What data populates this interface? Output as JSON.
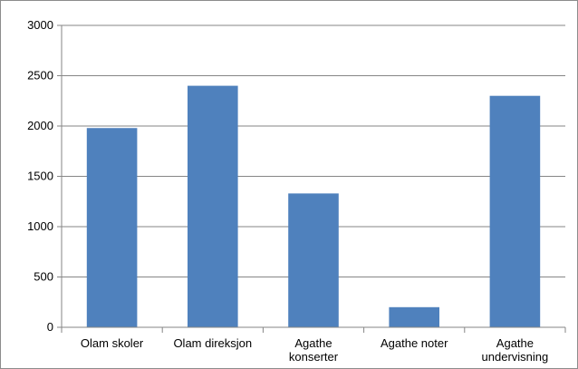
{
  "chart_data": {
    "type": "bar",
    "title": "",
    "xlabel": "",
    "ylabel": "",
    "ylim": [
      0,
      3000
    ],
    "yticks": [
      0,
      500,
      1000,
      1500,
      2000,
      2500,
      3000
    ],
    "ytick_labels": [
      "0",
      "500",
      "1000",
      "1500",
      "2000",
      "2500",
      "3000"
    ],
    "grid": true,
    "legend": "none",
    "bar_color": "#4f81bd",
    "categories": [
      [
        "Olam skoler"
      ],
      [
        "Olam direksjon"
      ],
      [
        "Agathe",
        "konserter"
      ],
      [
        "Agathe noter"
      ],
      [
        "Agathe",
        "undervisning"
      ]
    ],
    "values": [
      1980,
      2400,
      1330,
      200,
      2300
    ]
  }
}
